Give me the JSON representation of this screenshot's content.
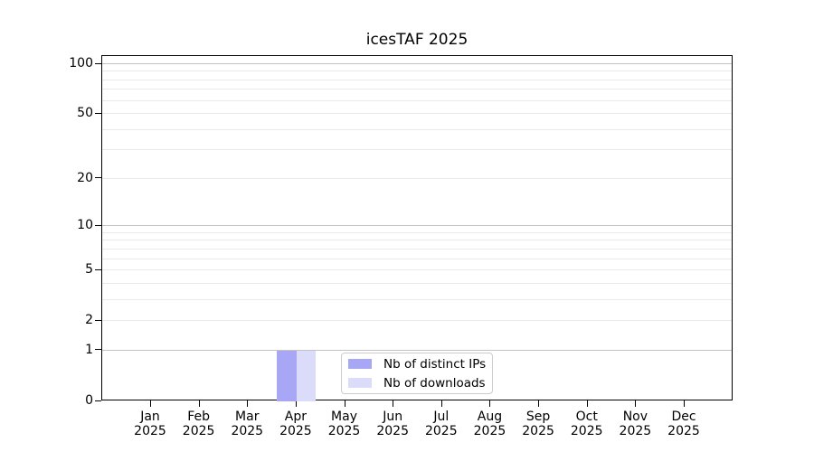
{
  "title": "icesTAF 2025",
  "chart_data": {
    "type": "bar",
    "title": "icesTAF 2025",
    "categories": [
      "Jan 2025",
      "Feb 2025",
      "Mar 2025",
      "Apr 2025",
      "May 2025",
      "Jun 2025",
      "Jul 2025",
      "Aug 2025",
      "Sep 2025",
      "Oct 2025",
      "Nov 2025",
      "Dec 2025"
    ],
    "series": [
      {
        "name": "Nb of distinct IPs",
        "color": "#a7a7f6",
        "values": [
          0,
          0,
          0,
          1,
          0,
          0,
          0,
          0,
          0,
          0,
          0,
          0
        ]
      },
      {
        "name": "Nb of downloads",
        "color": "#dbdbfa",
        "values": [
          0,
          0,
          0,
          1,
          0,
          0,
          0,
          0,
          0,
          0,
          0,
          0
        ]
      }
    ],
    "yscale": "log1p",
    "ylim": [
      0,
      111.9
    ],
    "y_tick_values": [
      0,
      1,
      2,
      5,
      10,
      20,
      50,
      100
    ],
    "y_tick_labels": [
      "0",
      "1",
      "2",
      "5",
      "10",
      "20",
      "50",
      "100"
    ],
    "grid_major_values": [
      1,
      10,
      100
    ],
    "grid_minor_values": [
      2,
      3,
      4,
      5,
      6,
      7,
      8,
      9,
      20,
      30,
      40,
      50,
      60,
      70,
      80,
      90
    ],
    "legend_entries": [
      "Nb of distinct IPs",
      "Nb of downloads"
    ],
    "legend_location": "lower center",
    "grid": "on"
  },
  "colors": {
    "background": "#ffffff",
    "spine": "#000000",
    "grid_major": "#c3c3c3",
    "grid_minor": "#e9e9e9",
    "bar_distinct_ips": "#a7a7f6",
    "bar_downloads": "#dbdbfa",
    "legend_border": "#cccccc",
    "text": "#000000"
  }
}
